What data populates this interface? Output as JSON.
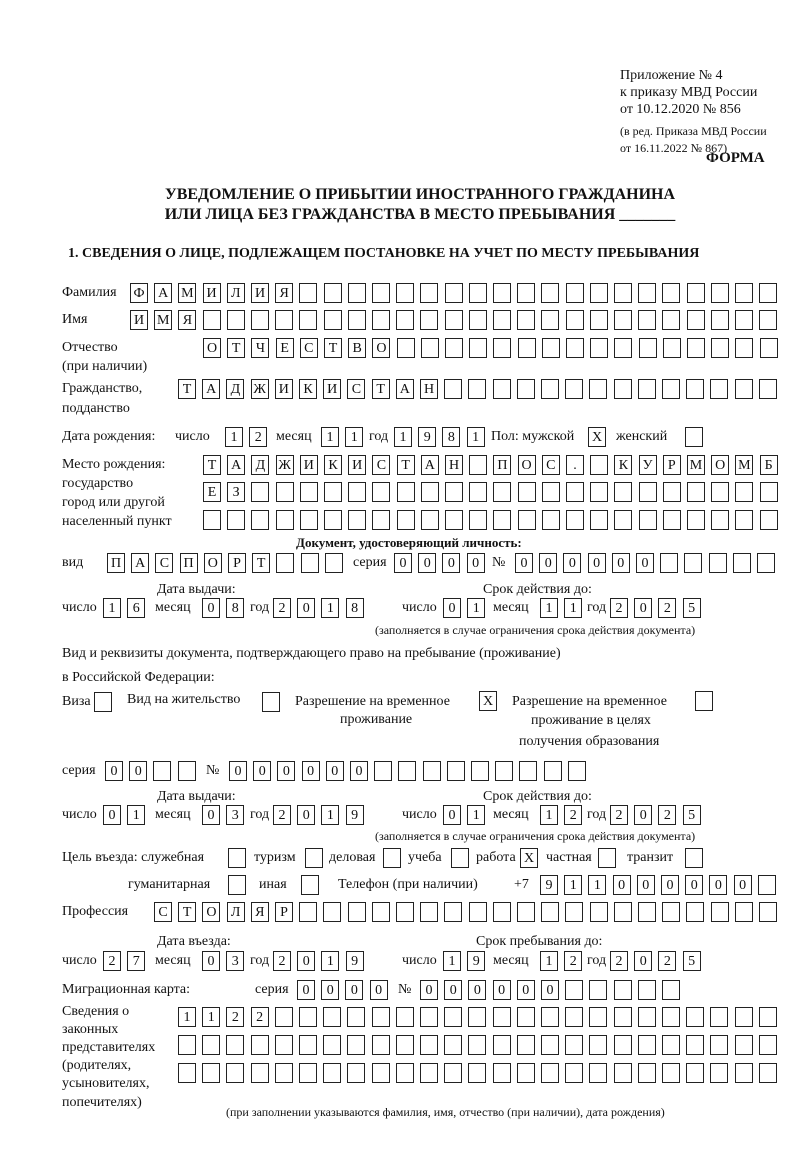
{
  "header": {
    "appendix": "Приложение № 4",
    "order": "к приказу МВД России",
    "date": "от 10.12.2020 № 856",
    "edit1": "(в ред. Приказа МВД России",
    "edit2": "от 16.11.2022 № 867)",
    "form": "ФОРМА",
    "title1": "УВЕДОМЛЕНИЕ О ПРИБЫТИИ ИНОСТРАННОГО ГРАЖДАНИНА",
    "title2": "ИЛИ ЛИЦА БЕЗ ГРАЖДАНСТВА В МЕСТО ПРЕБЫВАНИЯ _______",
    "section": "1. СВЕДЕНИЯ О ЛИЦЕ, ПОДЛЕЖАЩЕМ ПОСТАНОВКЕ НА УЧЕТ ПО МЕСТУ ПРЕБЫВАНИЯ"
  },
  "labels": {
    "surname": "Фамилия",
    "name": "Имя",
    "patronymic1": "Отчество",
    "patronymic2": "(при наличии)",
    "citizenship1": "Гражданство,",
    "citizenship2": "подданство",
    "birth_date": "Дата рождения:",
    "day": "число",
    "month": "месяц",
    "year": "год",
    "sex": "Пол: мужской",
    "female": "женский",
    "birth_place1": "Место рождения:",
    "birth_place2": "государство",
    "birth_place3": "город или другой",
    "birth_place4": "населенный пункт",
    "id_doc": "Документ, удостоверяющий личность:",
    "kind": "вид",
    "series": "серия",
    "number": "№",
    "issue_date": "Дата выдачи:",
    "valid_until": "Срок действия до:",
    "valid_note": "(заполняется в случае ограничения срока действия документа)",
    "residence_doc1": "Вид и реквизиты документа, подтверждающего право на пребывание (проживание)",
    "residence_doc2": "в Российской Федерации:",
    "visa": "Виза",
    "residence_permit": "Вид на жительство",
    "temp_permit1": "Разрешение на временное",
    "temp_permit2": "проживание",
    "edu_permit1": "Разрешение на временное",
    "edu_permit2": "проживание в целях",
    "edu_permit3": "получения образования",
    "purpose": "Цель въезда: служебная",
    "tourism": "туризм",
    "business": "деловая",
    "study": "учеба",
    "work": "работа",
    "private": "частная",
    "transit": "транзит",
    "humanitarian": "гуманитарная",
    "other": "иная",
    "phone": "Телефон (при наличии)",
    "phone_prefix": "+7",
    "profession": "Профессия",
    "entry_date": "Дата въезда:",
    "stay_until": "Срок пребывания до:",
    "migration_card": "Миграционная карта:",
    "rep1": "Сведения о",
    "rep2": "законных",
    "rep3": "представителях",
    "rep4": "(родителях,",
    "rep5": "усыновителях,",
    "rep6": "попечителях)",
    "rep_note": "(при заполнении указываются фамилия, имя, отчество (при наличии), дата рождения)"
  },
  "fields": {
    "surname": [
      "Ф",
      "А",
      "М",
      "И",
      "Л",
      "И",
      "Я",
      "",
      "",
      "",
      "",
      "",
      "",
      "",
      "",
      "",
      "",
      "",
      "",
      "",
      "",
      "",
      "",
      "",
      "",
      "",
      ""
    ],
    "name": [
      "И",
      "М",
      "Я",
      "",
      "",
      "",
      "",
      "",
      "",
      "",
      "",
      "",
      "",
      "",
      "",
      "",
      "",
      "",
      "",
      "",
      "",
      "",
      "",
      "",
      "",
      "",
      ""
    ],
    "patronymic": [
      "О",
      "Т",
      "Ч",
      "Е",
      "С",
      "Т",
      "В",
      "О",
      "",
      "",
      "",
      "",
      "",
      "",
      "",
      "",
      "",
      "",
      "",
      "",
      "",
      "",
      "",
      ""
    ],
    "citizenship": [
      "Т",
      "А",
      "Д",
      "Ж",
      "И",
      "К",
      "И",
      "С",
      "Т",
      "А",
      "Н",
      "",
      "",
      "",
      "",
      "",
      "",
      "",
      "",
      "",
      "",
      "",
      "",
      "",
      ""
    ],
    "birth_day": [
      "1",
      "2"
    ],
    "birth_month": [
      "1",
      "1"
    ],
    "birth_year": [
      "1",
      "9",
      "8",
      "1"
    ],
    "sex_male": [
      "X"
    ],
    "sex_female": [
      ""
    ],
    "birth_place_1": [
      "Т",
      "А",
      "Д",
      "Ж",
      "И",
      "К",
      "И",
      "С",
      "Т",
      "А",
      "Н",
      "",
      "П",
      "О",
      "С",
      ".",
      "",
      "К",
      "У",
      "Р",
      "М",
      "О",
      "М",
      "Б"
    ],
    "birth_place_2": [
      "Е",
      "З",
      "",
      "",
      "",
      "",
      "",
      "",
      "",
      "",
      "",
      "",
      "",
      "",
      "",
      "",
      "",
      "",
      "",
      "",
      "",
      "",
      "",
      ""
    ],
    "birth_place_3": [
      "",
      "",
      "",
      "",
      "",
      "",
      "",
      "",
      "",
      "",
      "",
      "",
      "",
      "",
      "",
      "",
      "",
      "",
      "",
      "",
      "",
      "",
      "",
      ""
    ],
    "id_kind": [
      "П",
      "А",
      "С",
      "П",
      "О",
      "Р",
      "Т",
      "",
      "",
      ""
    ],
    "id_series": [
      "0",
      "0",
      "0",
      "0"
    ],
    "id_number": [
      "0",
      "0",
      "0",
      "0",
      "0",
      "0",
      "",
      "",
      "",
      "",
      ""
    ],
    "id_issue_day": [
      "1",
      "6"
    ],
    "id_issue_month": [
      "0",
      "8"
    ],
    "id_issue_year": [
      "2",
      "0",
      "1",
      "8"
    ],
    "id_valid_day": [
      "0",
      "1"
    ],
    "id_valid_month": [
      "1",
      "1"
    ],
    "id_valid_year": [
      "2",
      "0",
      "2",
      "5"
    ],
    "visa": [
      ""
    ],
    "residence_permit": [
      ""
    ],
    "temp_permit": [
      "X"
    ],
    "edu_permit": [
      ""
    ],
    "res_series": [
      "0",
      "0",
      "",
      ""
    ],
    "res_number": [
      "0",
      "0",
      "0",
      "0",
      "0",
      "0",
      "",
      "",
      "",
      "",
      "",
      "",
      "",
      "",
      ""
    ],
    "res_issue_day": [
      "0",
      "1"
    ],
    "res_issue_month": [
      "0",
      "3"
    ],
    "res_issue_year": [
      "2",
      "0",
      "1",
      "9"
    ],
    "res_valid_day": [
      "0",
      "1"
    ],
    "res_valid_month": [
      "1",
      "2"
    ],
    "res_valid_year": [
      "2",
      "0",
      "2",
      "5"
    ],
    "p_service": [
      ""
    ],
    "p_tourism": [
      ""
    ],
    "p_business": [
      ""
    ],
    "p_study": [
      ""
    ],
    "p_work": [
      "X"
    ],
    "p_private": [
      ""
    ],
    "p_transit": [
      ""
    ],
    "p_humanitarian": [
      ""
    ],
    "p_other": [
      ""
    ],
    "phone": [
      "9",
      "1",
      "1",
      "0",
      "0",
      "0",
      "0",
      "0",
      "0",
      ""
    ],
    "profession": [
      "С",
      "Т",
      "О",
      "Л",
      "Я",
      "Р",
      "",
      "",
      "",
      "",
      "",
      "",
      "",
      "",
      "",
      "",
      "",
      "",
      "",
      "",
      "",
      "",
      "",
      "",
      "",
      ""
    ],
    "entry_day": [
      "2",
      "7"
    ],
    "entry_month": [
      "0",
      "3"
    ],
    "entry_year": [
      "2",
      "0",
      "1",
      "9"
    ],
    "stay_day": [
      "1",
      "9"
    ],
    "stay_month": [
      "1",
      "2"
    ],
    "stay_year": [
      "2",
      "0",
      "2",
      "5"
    ],
    "mc_series": [
      "0",
      "0",
      "0",
      "0"
    ],
    "mc_number": [
      "0",
      "0",
      "0",
      "0",
      "0",
      "0",
      "",
      "",
      "",
      "",
      ""
    ],
    "rep_1": [
      "1",
      "1",
      "2",
      "2",
      "",
      "",
      "",
      "",
      "",
      "",
      "",
      "",
      "",
      "",
      "",
      "",
      "",
      "",
      "",
      "",
      "",
      "",
      "",
      "",
      ""
    ],
    "rep_2": [
      "",
      "",
      "",
      "",
      "",
      "",
      "",
      "",
      "",
      "",
      "",
      "",
      "",
      "",
      "",
      "",
      "",
      "",
      "",
      "",
      "",
      "",
      "",
      "",
      ""
    ],
    "rep_3": [
      "",
      "",
      "",
      "",
      "",
      "",
      "",
      "",
      "",
      "",
      "",
      "",
      "",
      "",
      "",
      "",
      "",
      "",
      "",
      "",
      "",
      "",
      "",
      "",
      ""
    ]
  }
}
